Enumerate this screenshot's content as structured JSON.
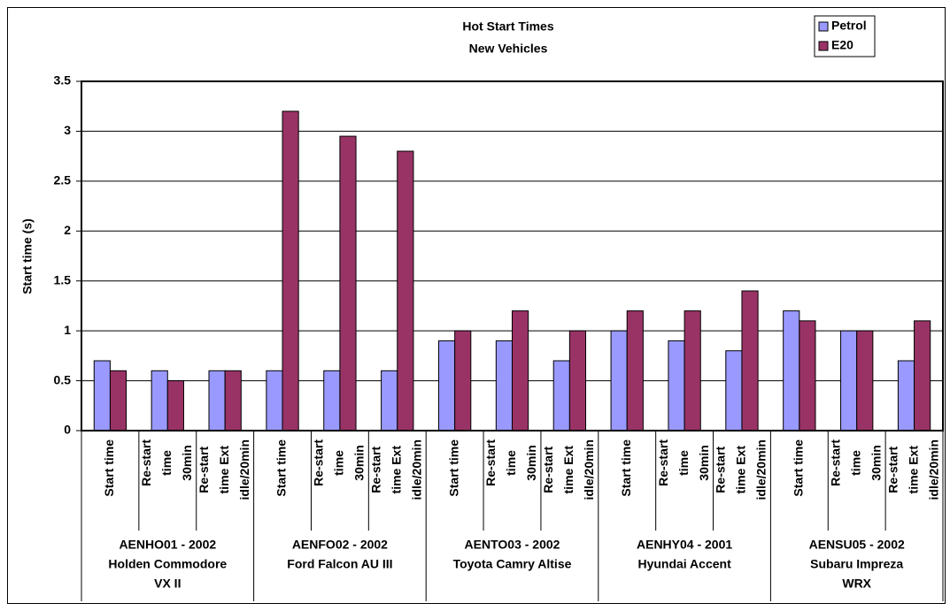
{
  "chart_data": {
    "type": "bar",
    "title": [
      "Hot Start Times",
      "New Vehicles"
    ],
    "y_label": "Start time (s)",
    "categories": [
      [
        "Start time"
      ],
      [
        "Re-start",
        "time",
        "30min"
      ],
      [
        "Re-start",
        "time Ext",
        "idle/20min"
      ],
      [
        "Start time"
      ],
      [
        "Re-start",
        "time",
        "30min"
      ],
      [
        "Re-start",
        "time Ext",
        "idle/20min"
      ],
      [
        "Start time"
      ],
      [
        "Re-start",
        "time",
        "30min"
      ],
      [
        "Re-start",
        "time Ext",
        "idle/20min"
      ],
      [
        "Start time"
      ],
      [
        "Re-start",
        "time",
        "30min"
      ],
      [
        "Re-start",
        "time Ext",
        "idle/20min"
      ],
      [
        "Start time"
      ],
      [
        "Re-start",
        "time",
        "30min"
      ],
      [
        "Re-start",
        "time Ext",
        "idle/20min"
      ]
    ],
    "groups": [
      [
        "AENHO01 - 2002",
        "Holden Commodore",
        "VX II"
      ],
      [
        "AENFO02 - 2002",
        "Ford Falcon AU III"
      ],
      [
        "AENTO03 - 2002",
        "Toyota Camry Altise"
      ],
      [
        "AENHY04 - 2001",
        "Hyundai Accent"
      ],
      [
        "AENSU05 - 2002",
        "Subaru Impreza",
        "WRX"
      ]
    ],
    "series": [
      {
        "name": "Petrol",
        "color": "#9999ff",
        "values": [
          0.7,
          0.6,
          0.6,
          0.6,
          0.6,
          0.6,
          0.9,
          0.9,
          0.7,
          1.0,
          0.9,
          0.8,
          1.2,
          1.0,
          0.7
        ]
      },
      {
        "name": "E20",
        "color": "#993366",
        "values": [
          0.6,
          0.5,
          0.6,
          3.2,
          2.95,
          2.8,
          1.0,
          1.2,
          1.0,
          1.2,
          1.2,
          1.4,
          1.1,
          1.0,
          1.1
        ]
      }
    ],
    "ylim": [
      0,
      3.5
    ],
    "yticks": [
      0,
      0.5,
      1,
      1.5,
      2,
      2.5,
      3,
      3.5
    ],
    "grid": true,
    "legend": "top-right"
  }
}
